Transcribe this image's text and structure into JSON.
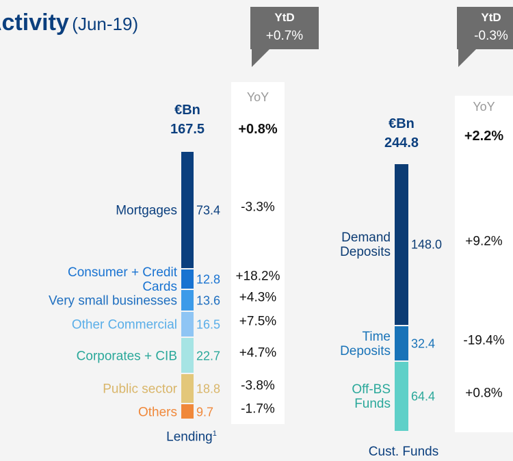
{
  "title": "Activity",
  "subtitle": "(Jun-19)",
  "chart_data": [
    {
      "type": "stacked_bar",
      "title": "Lending",
      "title_note": "1",
      "unit": "€Bn",
      "total": 167.5,
      "total_change": "+0.8%",
      "change_header": "YoY",
      "ytd_header": "YtD",
      "ytd": "+0.7%",
      "categories": [
        "Mortgages",
        "Consumer + Credit Cards",
        "Very small businesses",
        "Other Commercial",
        "Corporates + CIB",
        "Public sector",
        "Others"
      ],
      "values": [
        73.4,
        12.8,
        13.6,
        16.5,
        22.7,
        18.8,
        9.7
      ],
      "changes": [
        "-3.3%",
        "+18.2%",
        "+4.3%",
        "+7.5%",
        "+4.7%",
        "-3.8%",
        "-1.7%"
      ],
      "colors": [
        "#0b3f7e",
        "#1973d1",
        "#3d9be9",
        "#8fc5f4",
        "#a6e4e4",
        "#e3c77a",
        "#f0883a"
      ],
      "label_colors": [
        "#0b3f7e",
        "#1973d1",
        "#1f6fc0",
        "#5aaee8",
        "#2aa89a",
        "#d9b66a",
        "#f0883a"
      ]
    },
    {
      "type": "stacked_bar",
      "title": "Cust. Funds",
      "unit": "€Bn",
      "total": 244.8,
      "total_change": "+2.2%",
      "change_header": "YoY",
      "ytd_header": "YtD",
      "ytd": "-0.3%",
      "categories": [
        "Demand Deposits",
        "Time Deposits",
        "Off-BS Funds"
      ],
      "values": [
        148,
        32.4,
        64.4
      ],
      "value_labels": [
        "148.0",
        "32.4",
        "64.4"
      ],
      "changes": [
        "+9.2%",
        "-19.4%",
        "+0.8%"
      ],
      "colors": [
        "#0c3c74",
        "#1973b8",
        "#5fd0c8"
      ],
      "label_colors": [
        "#0c3c74",
        "#1973b8",
        "#2aa89a"
      ]
    }
  ]
}
